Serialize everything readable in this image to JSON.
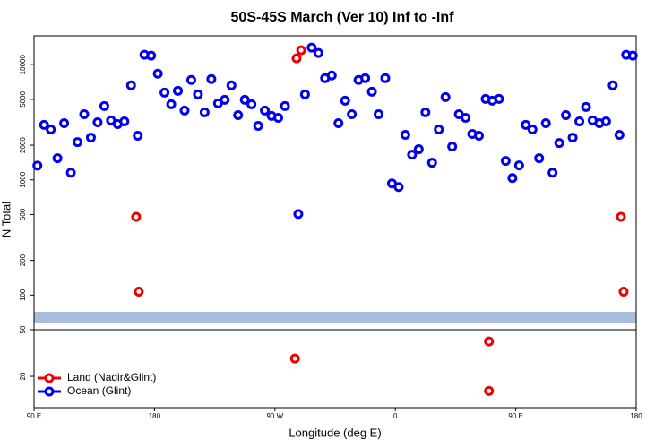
{
  "chart_data": [
    {
      "type": "scatter",
      "title": "50S-45S March (Ver 10)   Inf to -Inf",
      "ylabel": "N Total",
      "log_y": true,
      "ylim": [
        50,
        17800
      ],
      "yticks": [
        100,
        200,
        500,
        1000,
        2000,
        5000,
        10000
      ],
      "series": [
        {
          "name": "Land (Nadir&Glint)",
          "color": "#ee0000",
          "x": [
            166.3,
            168.3,
            286.2,
            289.6,
            528.6,
            530.6
          ],
          "values": [
            478,
            107,
            11350,
            13340,
            478,
            107
          ]
        },
        {
          "name": "Ocean (Glint)",
          "color": "#0000ee",
          "x": [
            92.5,
            97.5,
            102.5,
            107.5,
            112.5,
            117.5,
            122.5,
            127.5,
            132.5,
            137.5,
            142.5,
            147.5,
            152.5,
            157.5,
            162.5,
            167.5,
            172.5,
            177.5,
            182.5,
            187.5,
            192.5,
            197.5,
            202.5,
            207.5,
            212.5,
            217.5,
            222.5,
            227.5,
            232.5,
            237.5,
            242.5,
            247.5,
            252.5,
            257.5,
            262.5,
            267.5,
            272.5,
            277.5,
            287.5,
            292.5,
            297.5,
            302.5,
            307.5,
            312.5,
            317.5,
            322.5,
            327.5,
            332.5,
            337.5,
            342.5,
            347.5,
            352.5,
            357.5,
            362.5,
            367.5,
            372.5,
            377.5,
            382.5,
            387.5,
            392.5,
            397.5,
            402.5,
            407.5,
            412.5,
            417.5,
            422.5,
            427.5,
            432.5,
            437.5,
            442.5,
            447.5,
            452.5,
            457.5,
            462.5,
            467.5,
            472.5,
            477.5,
            482.5,
            487.5,
            492.5,
            497.5,
            502.5,
            507.5,
            512.5,
            517.5,
            522.5,
            527.5,
            532.5,
            537.5
          ],
          "values": [
            1330,
            3000,
            2740,
            1540,
            3105,
            1155,
            2128,
            3715,
            2328,
            3162,
            4373,
            3280,
            3050,
            3220,
            6610,
            2415,
            12190,
            11970,
            8350,
            5725,
            4530,
            5935,
            3995,
            7365,
            5525,
            3855,
            7500,
            4615,
            4960,
            6610,
            3650,
            4960,
            4530,
            2942,
            3995,
            3590,
            3460,
            4373,
            505,
            5525,
            14070,
            12640,
            7640,
            8060,
            3105,
            4870,
            3715,
            7365,
            7640,
            5830,
            3715,
            7640,
            931,
            866,
            2460,
            1655,
            1845,
            3855,
            1407,
            2740,
            5235,
            1946,
            3715,
            3460,
            2503,
            2415,
            5050,
            4870,
            5050,
            1459,
            1036,
            1334,
            3000,
            2740,
            1540,
            3105,
            1155,
            2090,
            3650,
            2328,
            3220,
            4295,
            3280,
            3105,
            3220,
            6610,
            2460,
            12190,
            11970
          ]
        }
      ]
    },
    {
      "type": "scatter",
      "xlabel": "Longitude (deg E)",
      "log_y": true,
      "legend": "bottom-left",
      "xlim": [
        90,
        540
      ],
      "xticks": [
        {
          "value": 90,
          "label": "90 E"
        },
        180,
        {
          "value": 270,
          "label": "90 W"
        },
        {
          "value": 360,
          "label": "0"
        },
        {
          "value": 450,
          "label": "90 E"
        },
        {
          "value": 540,
          "label": "180"
        }
      ],
      "ylim": [
        10.8,
        50
      ],
      "yticks": [
        20,
        50
      ],
      "series": [
        {
          "name": "Land (Nadir&Glint)",
          "color": "#ee0000",
          "x": [
            285,
            430,
            430
          ],
          "values": [
            28.4,
            39.7,
            15.0
          ]
        }
      ]
    }
  ]
}
